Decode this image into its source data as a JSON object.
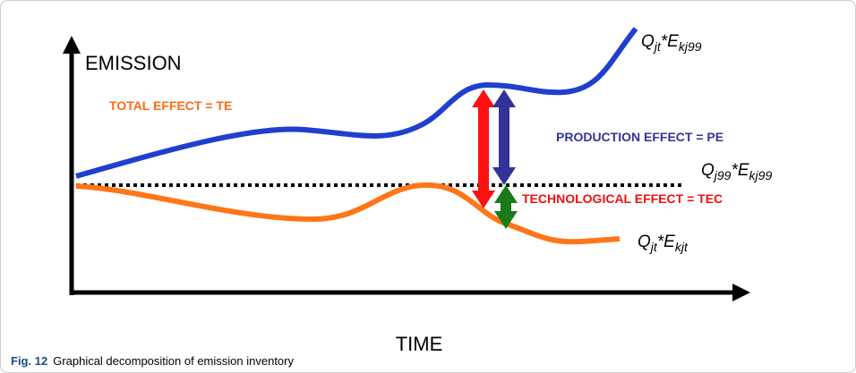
{
  "axes": {
    "y_label": "EMISSION",
    "x_label": "TIME"
  },
  "effects": {
    "total": "TOTAL EFFECT = TE",
    "production": "PRODUCTION EFFECT = PE",
    "technological": "TECHNOLOGICAL EFFECT = TEC"
  },
  "curve_labels": [
    {
      "parts": [
        "Q",
        "jt",
        "*E",
        "kj99"
      ]
    },
    {
      "parts": [
        "Q",
        "j99",
        "*E",
        "kj99"
      ]
    },
    {
      "parts": [
        "Q",
        "jt",
        "*E",
        "kjt"
      ]
    }
  ],
  "caption": {
    "label": "Fig. 12",
    "text": "Graphical decomposition of emission inventory"
  }
}
